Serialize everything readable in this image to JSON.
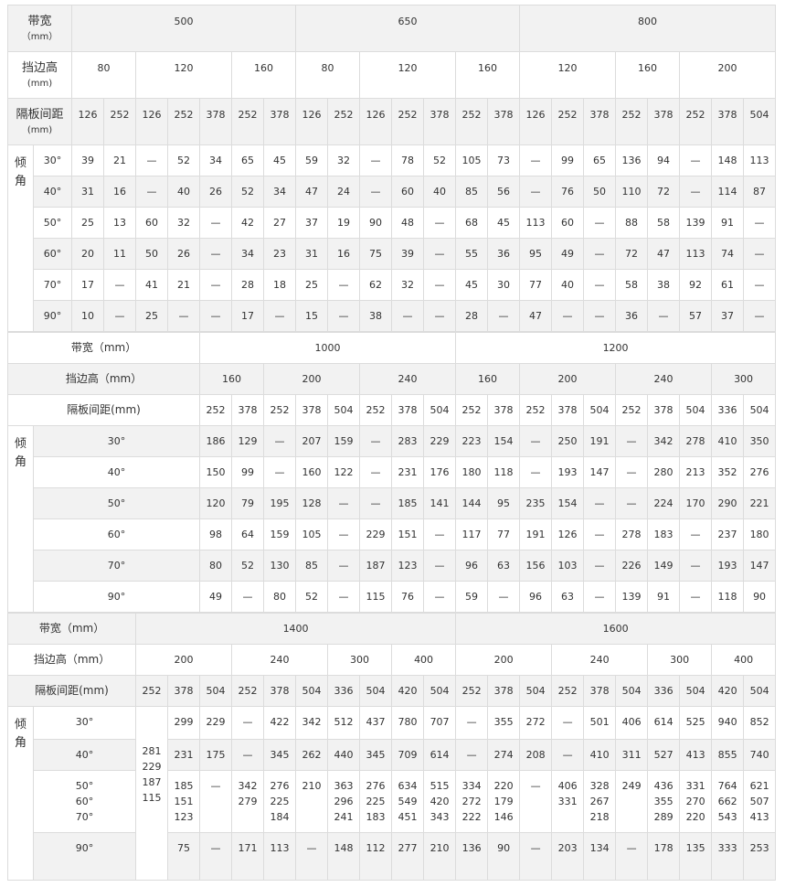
{
  "tables": [
    {
      "width_label": {
        "main": "带宽",
        "unit": "（mm）"
      },
      "widths": [
        {
          "value": "500",
          "span": 7
        },
        {
          "value": "650",
          "span": 7
        },
        {
          "value": "800",
          "span": 8
        }
      ],
      "height_label": {
        "main": "挡边高",
        "unit": "(mm)"
      },
      "heights": [
        {
          "value": "80",
          "span": 2
        },
        {
          "value": "120",
          "span": 3
        },
        {
          "value": "160",
          "span": 2
        },
        {
          "value": "80",
          "span": 2
        },
        {
          "value": "120",
          "span": 3
        },
        {
          "value": "160",
          "span": 2
        },
        {
          "value": "120",
          "span": 3
        },
        {
          "value": "160",
          "span": 2
        },
        {
          "value": "200",
          "span": 3
        }
      ],
      "spacing_label": {
        "main": "隔板间距",
        "unit": "(mm)"
      },
      "spacings": [
        "126",
        "252",
        "126",
        "252",
        "378",
        "252",
        "378",
        "126",
        "252",
        "126",
        "252",
        "378",
        "252",
        "378",
        "126",
        "252",
        "378",
        "252",
        "378",
        "252",
        "378",
        "504"
      ],
      "angle_label": "倾\n角",
      "rows": [
        {
          "angle": "30°",
          "values": [
            "39",
            "21",
            "—",
            "52",
            "34",
            "65",
            "45",
            "59",
            "32",
            "—",
            "78",
            "52",
            "105",
            "73",
            "—",
            "99",
            "65",
            "136",
            "94",
            "—",
            "148",
            "113"
          ]
        },
        {
          "angle": "40°",
          "values": [
            "31",
            "16",
            "—",
            "40",
            "26",
            "52",
            "34",
            "47",
            "24",
            "—",
            "60",
            "40",
            "85",
            "56",
            "—",
            "76",
            "50",
            "110",
            "72",
            "—",
            "114",
            "87"
          ]
        },
        {
          "angle": "50°",
          "values": [
            "25",
            "13",
            "60",
            "32",
            "—",
            "42",
            "27",
            "37",
            "19",
            "90",
            "48",
            "—",
            "68",
            "45",
            "113",
            "60",
            "—",
            "88",
            "58",
            "139",
            "91",
            "—"
          ]
        },
        {
          "angle": "60°",
          "values": [
            "20",
            "11",
            "50",
            "26",
            "—",
            "34",
            "23",
            "31",
            "16",
            "75",
            "39",
            "—",
            "55",
            "36",
            "95",
            "49",
            "—",
            "72",
            "47",
            "113",
            "74",
            "—"
          ]
        },
        {
          "angle": "70°",
          "values": [
            "17",
            "—",
            "41",
            "21",
            "—",
            "28",
            "18",
            "25",
            "—",
            "62",
            "32",
            "—",
            "45",
            "30",
            "77",
            "40",
            "—",
            "58",
            "38",
            "92",
            "61",
            "—"
          ]
        },
        {
          "angle": "90°",
          "values": [
            "10",
            "—",
            "25",
            "—",
            "—",
            "17",
            "—",
            "15",
            "—",
            "38",
            "—",
            "—",
            "28",
            "—",
            "47",
            "—",
            "—",
            "36",
            "—",
            "57",
            "37",
            "—"
          ]
        }
      ]
    },
    {
      "width_label": "带宽（mm）",
      "widths": [
        {
          "value": "1000",
          "span": 8
        },
        {
          "value": "1200",
          "span": 10
        }
      ],
      "height_label": "挡边高（mm）",
      "heights": [
        {
          "value": "160",
          "span": 2
        },
        {
          "value": "200",
          "span": 3
        },
        {
          "value": "240",
          "span": 3
        },
        {
          "value": "160",
          "span": 2
        },
        {
          "value": "200",
          "span": 3
        },
        {
          "value": "240",
          "span": 3
        },
        {
          "value": "300",
          "span": 2
        }
      ],
      "spacing_label": "隔板间距(mm)",
      "spacings": [
        "252",
        "378",
        "252",
        "378",
        "504",
        "252",
        "378",
        "504",
        "252",
        "378",
        "252",
        "378",
        "504",
        "252",
        "378",
        "504",
        "336",
        "504"
      ],
      "angle_label": "倾\n角",
      "rows": [
        {
          "angle": "30°",
          "values": [
            "186",
            "129",
            "—",
            "207",
            "159",
            "—",
            "283",
            "229",
            "223",
            "154",
            "—",
            "250",
            "191",
            "—",
            "342",
            "278",
            "410",
            "350"
          ]
        },
        {
          "angle": "40°",
          "values": [
            "150",
            "99",
            "—",
            "160",
            "122",
            "—",
            "231",
            "176",
            "180",
            "118",
            "—",
            "193",
            "147",
            "—",
            "280",
            "213",
            "352",
            "276"
          ]
        },
        {
          "angle": "50°",
          "values": [
            "120",
            "79",
            "195",
            "128",
            "—",
            "—",
            "185",
            "141",
            "144",
            "95",
            "235",
            "154",
            "—",
            "—",
            "224",
            "170",
            "290",
            "221"
          ]
        },
        {
          "angle": "60°",
          "values": [
            "98",
            "64",
            "159",
            "105",
            "—",
            "229",
            "151",
            "—",
            "117",
            "77",
            "191",
            "126",
            "—",
            "278",
            "183",
            "—",
            "237",
            "180"
          ]
        },
        {
          "angle": "70°",
          "values": [
            "80",
            "52",
            "130",
            "85",
            "—",
            "187",
            "123",
            "—",
            "96",
            "63",
            "156",
            "103",
            "—",
            "226",
            "149",
            "—",
            "193",
            "147"
          ]
        },
        {
          "angle": "90°",
          "values": [
            "49",
            "—",
            "80",
            "52",
            "—",
            "115",
            "76",
            "—",
            "59",
            "—",
            "96",
            "63",
            "—",
            "139",
            "91",
            "—",
            "118",
            "90"
          ]
        }
      ]
    },
    {
      "width_label": "带宽（mm）",
      "widths": [
        {
          "value": "1400",
          "span": 10
        },
        {
          "value": "1600",
          "span": 10
        }
      ],
      "height_label": "挡边高（mm）",
      "heights": [
        {
          "value": "200",
          "span": 3
        },
        {
          "value": "240",
          "span": 3
        },
        {
          "value": "300",
          "span": 2
        },
        {
          "value": "400",
          "span": 2
        },
        {
          "value": "200",
          "span": 3
        },
        {
          "value": "240",
          "span": 3
        },
        {
          "value": "300",
          "span": 2
        },
        {
          "value": "400",
          "span": 2
        }
      ],
      "spacing_label": "隔板间距(mm)",
      "spacings": [
        "252",
        "378",
        "504",
        "252",
        "378",
        "504",
        "336",
        "504",
        "420",
        "504",
        "252",
        "378",
        "504",
        "252",
        "378",
        "504",
        "336",
        "504",
        "420",
        "504"
      ],
      "angle_label": "倾\n角",
      "rows": [
        {
          "angle": "30°",
          "values": [
            {
              "text": "281\n229\n187\n115",
              "rowspan": 4
            },
            "299",
            "229",
            "—",
            "422",
            "342",
            "512",
            "437",
            "780",
            "707",
            "—",
            "355",
            "272",
            "—",
            "501",
            "406",
            "614",
            "525",
            "940",
            "852"
          ]
        },
        {
          "angle": "40°",
          "values": [
            "231",
            "175",
            "—",
            "345",
            "262",
            "440",
            "345",
            "709",
            "614",
            "—",
            "274",
            "208",
            "—",
            "410",
            "311",
            "527",
            "413",
            "855",
            "740"
          ]
        },
        {
          "angle": "50°\n60°\n70°",
          "values": [
            "185\n151\n123",
            "—",
            "342\n279",
            "276\n225\n184",
            "210",
            "363\n296\n241",
            "276\n225\n183",
            "634\n549\n451",
            "515\n420\n343",
            "334\n272\n222",
            "220\n179\n146",
            "—",
            "406\n331",
            "328\n267\n218",
            "249",
            "436\n355\n289",
            "331\n270\n220",
            "764\n662\n543",
            "621\n507\n413"
          ]
        },
        {
          "angle": "90°",
          "values": [
            "75",
            "—",
            "171",
            "113",
            "—",
            "148",
            "112",
            "277",
            "210",
            "136",
            "90",
            "—",
            "203",
            "134",
            "—",
            "178",
            "135",
            "333",
            "253"
          ]
        }
      ]
    }
  ]
}
